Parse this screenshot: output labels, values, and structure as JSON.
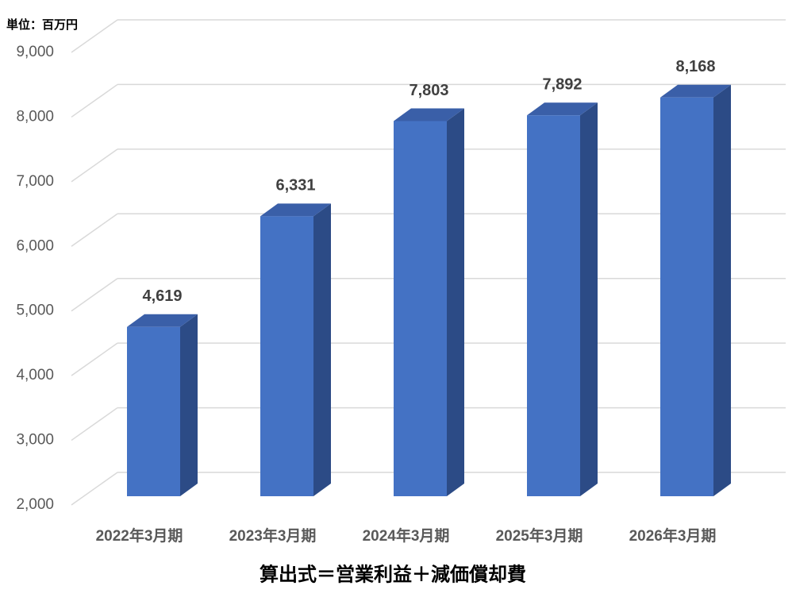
{
  "chart_data": {
    "type": "bar3d",
    "unit_label": "単位：百万円",
    "x_label": "算出式＝営業利益＋減価償却費",
    "categories": [
      "2022年3月期",
      "2023年3月期",
      "2024年3月期",
      "2025年3月期",
      "2026年3月期"
    ],
    "values": [
      4619,
      6331,
      7803,
      7892,
      8168
    ],
    "value_labels": [
      "4,619",
      "6,331",
      "7,803",
      "7,892",
      "8,168"
    ],
    "color": "#4472c4",
    "ylim": [
      2000,
      9000
    ],
    "yticks": [
      {
        "value": 2000,
        "label": "2,000"
      },
      {
        "value": 3000,
        "label": "3,000"
      },
      {
        "value": 4000,
        "label": "4,000"
      },
      {
        "value": 5000,
        "label": "5,000"
      },
      {
        "value": 6000,
        "label": "6,000"
      },
      {
        "value": 7000,
        "label": "7,000"
      },
      {
        "value": 8000,
        "label": "8,000"
      },
      {
        "value": 9000,
        "label": "9,000"
      }
    ],
    "grid": true
  }
}
